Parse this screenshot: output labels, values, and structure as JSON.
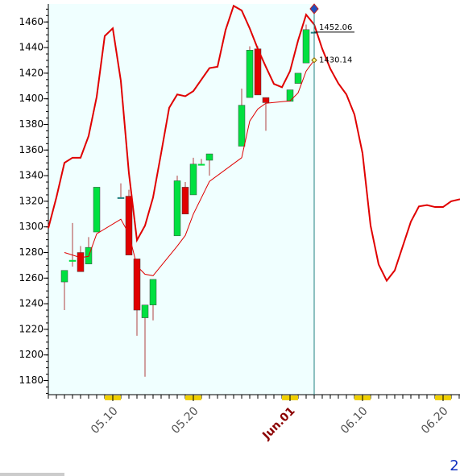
{
  "chart_data": {
    "type": "candlestick",
    "xlim": [
      2,
      53.1
    ],
    "xticks": [
      {
        "value": 10,
        "label": "05.10"
      },
      {
        "value": 20,
        "label": "05.20"
      },
      {
        "value": 32,
        "label": "Jun.01",
        "color": "#8b0000"
      },
      {
        "value": 41,
        "label": "06.10"
      },
      {
        "value": 51,
        "label": "06.20"
      }
    ],
    "ylim": [
      1169,
      1474
    ],
    "yticks": [
      1180,
      1200,
      1220,
      1240,
      1260,
      1280,
      1300,
      1320,
      1340,
      1360,
      1380,
      1400,
      1420,
      1440,
      1460
    ],
    "crosshair_x": 35,
    "up_color": "#00e040",
    "down_color": "#e00000",
    "flat_color": "#208080",
    "candles": {
      "x": [
        4,
        5,
        6,
        7,
        8,
        11,
        12,
        13,
        14,
        15,
        18,
        19,
        20,
        21,
        22,
        26,
        27,
        28,
        29,
        32,
        33,
        34,
        35
      ],
      "open": [
        1257,
        1273,
        1280,
        1271,
        1296,
        1323,
        1324,
        1275,
        1229,
        1239,
        1293,
        1331,
        1325,
        1348,
        1352,
        1363,
        1401,
        1439,
        1401,
        1398,
        1412,
        1428,
        1452.06
      ],
      "high": [
        1266,
        1303,
        1285,
        1292,
        1331,
        1334,
        1329,
        1275,
        1239,
        1259,
        1340,
        1335,
        1354,
        1353,
        1357,
        1408,
        1441,
        1441,
        1401,
        1407,
        1420,
        1458,
        1452.06
      ],
      "low": [
        1235,
        1269,
        1265,
        1271,
        1296,
        1323,
        1278,
        1215,
        1183,
        1227,
        1293,
        1310,
        1325,
        1348,
        1340,
        1363,
        1401,
        1403,
        1375,
        1398,
        1412,
        1428,
        1452.06
      ],
      "close": [
        1266,
        1274,
        1265,
        1284,
        1331,
        1323,
        1278,
        1235,
        1239,
        1259,
        1336,
        1310,
        1349,
        1349,
        1357,
        1395,
        1438,
        1403,
        1397,
        1407,
        1420,
        1454,
        1452.06
      ],
      "last_label": "1452.06"
    },
    "series": [
      {
        "color": "#e00000",
        "width": 2,
        "x": [
          2,
          3,
          4,
          5,
          6,
          7,
          8,
          9,
          10,
          11,
          12,
          13,
          14,
          15,
          16,
          17,
          18,
          19,
          20,
          21,
          22,
          23,
          24,
          25,
          26,
          27,
          28,
          29,
          30,
          31,
          32,
          33,
          34,
          35,
          36,
          37,
          38,
          39,
          40,
          41,
          42,
          43,
          44,
          45,
          46,
          47,
          48,
          49,
          50,
          51,
          52,
          53.1
        ],
        "values": [
          1299,
          1323,
          1350,
          1354,
          1354,
          1371,
          1401.5,
          1449,
          1455,
          1414,
          1342,
          1289.6,
          1301,
          1323,
          1357.5,
          1393,
          1403.4,
          1402,
          1406,
          1415,
          1424,
          1425,
          1453.7,
          1472.6,
          1469,
          1455,
          1439,
          1425,
          1411.6,
          1409,
          1421.6,
          1445.5,
          1465.7,
          1458,
          1439,
          1423.5,
          1412,
          1403.4,
          1387.7,
          1357.5,
          1301,
          1270.7,
          1258,
          1266,
          1285,
          1304,
          1316,
          1317,
          1315.5,
          1315.5,
          1320,
          1321.6
        ]
      },
      {
        "color": "#e00000",
        "width": 1,
        "x": [
          4,
          6,
          7,
          8,
          11,
          12,
          13,
          14,
          15,
          18,
          19,
          20,
          22,
          26,
          27,
          28,
          29,
          32,
          33,
          34,
          35
        ],
        "values": [
          1280,
          1276,
          1277,
          1294.6,
          1306,
          1294.6,
          1269.4,
          1263,
          1261.9,
          1285,
          1293.3,
          1310,
          1335.5,
          1354,
          1382.6,
          1392,
          1396.5,
          1398.4,
          1404.6,
          1421.6,
          1430.14
        ],
        "last_label": "1430.14"
      }
    ],
    "page_number": "2"
  }
}
